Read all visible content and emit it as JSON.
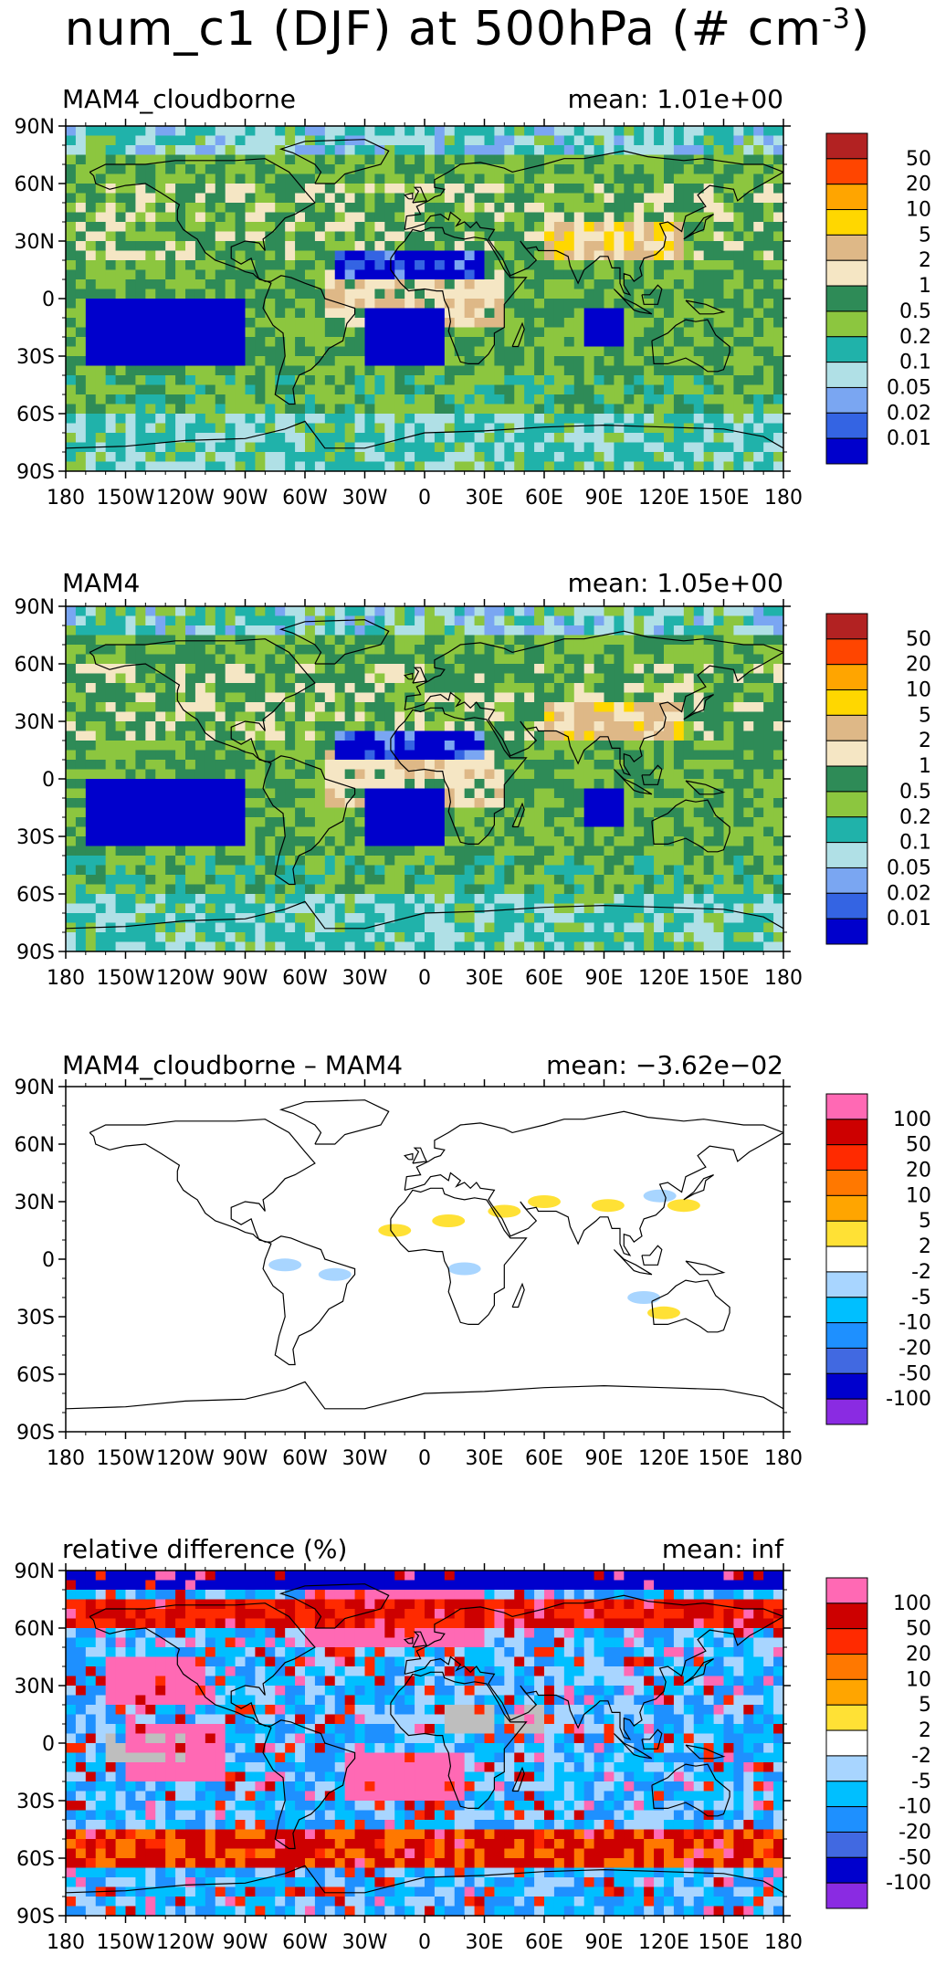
{
  "title": {
    "main": "num_c1 (DJF) at 500hPa (# cm",
    "exponent": "-3",
    "close": ")"
  },
  "axes": {
    "lon_ticks": [
      "180",
      "150W",
      "120W",
      "90W",
      "60W",
      "30W",
      "0",
      "30E",
      "60E",
      "90E",
      "120E",
      "150E",
      "180"
    ],
    "lat_ticks": [
      "90N",
      "60N",
      "30N",
      "0",
      "30S",
      "60S",
      "90S"
    ],
    "xlim": [
      -180,
      180
    ],
    "ylim": [
      -90,
      90
    ]
  },
  "colors": {
    "levels_abs": [
      "#0000cc",
      "#3464e3",
      "#7aa6f2",
      "#b0e0e6",
      "#20b2aa",
      "#8cc63f",
      "#2e8b57",
      "#f5e6c4",
      "#deb887",
      "#ffd700",
      "#ffa500",
      "#ff4500",
      "#b22222"
    ],
    "levels_diff": [
      "#8a2be2",
      "#0000cd",
      "#4169e1",
      "#1e90ff",
      "#00bfff",
      "#a8d5ff",
      "#ffffff",
      "#ffe135",
      "#ffa500",
      "#ff7800",
      "#ff2a00",
      "#cd0000",
      "#ff69b4"
    ],
    "missing": "#bebebe"
  },
  "chart_data": [
    {
      "type": "heatmap",
      "title": "MAM4_cloudborne",
      "mean_label": "mean:  1.01e+00",
      "colorbar_labels": [
        "0.01",
        "0.02",
        "0.05",
        "0.1",
        "0.2",
        "0.5",
        "1",
        "2",
        "5",
        "10",
        "20",
        "50"
      ],
      "xlim": [
        -180,
        180
      ],
      "ylim": [
        -90,
        90
      ],
      "projection": "cylindrical equidistant",
      "coastlines": true
    },
    {
      "type": "heatmap",
      "title": "MAM4",
      "mean_label": "mean:  1.05e+00",
      "colorbar_labels": [
        "0.01",
        "0.02",
        "0.05",
        "0.1",
        "0.2",
        "0.5",
        "1",
        "2",
        "5",
        "10",
        "20",
        "50"
      ],
      "xlim": [
        -180,
        180
      ],
      "ylim": [
        -90,
        90
      ],
      "projection": "cylindrical equidistant",
      "coastlines": true
    },
    {
      "type": "heatmap",
      "title": "MAM4_cloudborne – MAM4",
      "mean_label": "mean: −3.62e−02",
      "colorbar_labels": [
        "-100",
        "-50",
        "-20",
        "-10",
        "-5",
        "-2",
        "2",
        "5",
        "10",
        "20",
        "50",
        "100"
      ],
      "xlim": [
        -180,
        180
      ],
      "ylim": [
        -90,
        90
      ],
      "projection": "cylindrical equidistant",
      "coastlines": true
    },
    {
      "type": "heatmap",
      "title": "relative difference (%)",
      "mean_label": "mean:    inf",
      "colorbar_labels": [
        "-100",
        "-50",
        "-20",
        "-10",
        "-5",
        "-2",
        "2",
        "5",
        "10",
        "20",
        "50",
        "100"
      ],
      "xlim": [
        -180,
        180
      ],
      "ylim": [
        -90,
        90
      ],
      "projection": "cylindrical equidistant",
      "coastlines": true
    }
  ]
}
